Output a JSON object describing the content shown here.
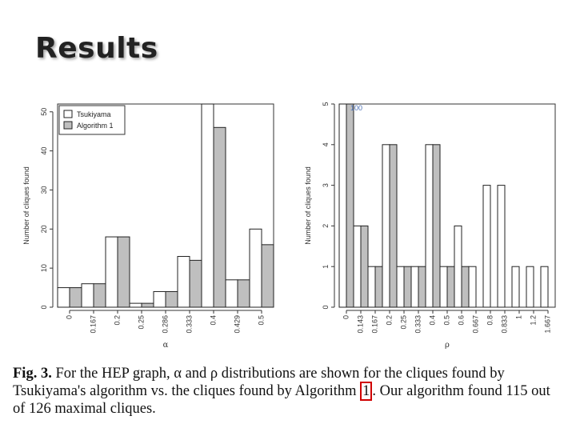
{
  "slide": {
    "title": "Results"
  },
  "caption": {
    "fig_label": "Fig. 3.",
    "text_part1": " For the HEP graph, α and ρ distributions are shown for the cliques found by Tsukiyama's algorithm vs. the cliques found by Algorithm ",
    "ref": "1",
    "text_part2": ". Our algorithm found 115 out of 126 maximal cliques."
  },
  "chart_data": [
    {
      "type": "bar",
      "xlabel": "α",
      "ylabel": "Number of cliques found",
      "ylim": [
        0,
        52
      ],
      "yticks": [
        0,
        10,
        20,
        30,
        40,
        50
      ],
      "categories": [
        "0",
        "0.167",
        "0.2",
        "0.25",
        "0.286",
        "0.333",
        "0.4",
        "0.429",
        "0.5"
      ],
      "series": [
        {
          "name": "Tsukiyama",
          "color": "#ffffff",
          "values": [
            5,
            6,
            18,
            1,
            4,
            13,
            52,
            7,
            20
          ]
        },
        {
          "name": "Algorithm 1",
          "color": "#bfbfbf",
          "values": [
            5,
            6,
            18,
            1,
            4,
            12,
            46,
            7,
            16
          ]
        }
      ],
      "legend": "top-left",
      "grid": false
    },
    {
      "type": "bar",
      "xlabel": "ρ",
      "ylabel": "Number of cliques found",
      "ylim": [
        0,
        5
      ],
      "yticks": [
        0,
        1,
        2,
        3,
        4,
        5
      ],
      "annotation": "100",
      "categories": [
        "0",
        "0.143",
        "0.167",
        "0.2",
        "0.25",
        "0.333",
        "0.4",
        "0.5",
        "0.6",
        "0.667",
        "0.8",
        "0.833",
        "1",
        "1.2",
        "1.667"
      ],
      "series": [
        {
          "name": "Tsukiyama",
          "color": "#ffffff",
          "values": [
            5,
            2,
            1,
            4,
            1,
            1,
            4,
            1,
            2,
            1,
            3,
            3,
            1,
            1,
            1
          ]
        },
        {
          "name": "Algorithm 1",
          "color": "#bfbfbf",
          "values": [
            5,
            2,
            1,
            4,
            1,
            1,
            4,
            1,
            1,
            0,
            0,
            0,
            0,
            0,
            0
          ]
        }
      ],
      "legend": "none",
      "grid": false
    }
  ]
}
